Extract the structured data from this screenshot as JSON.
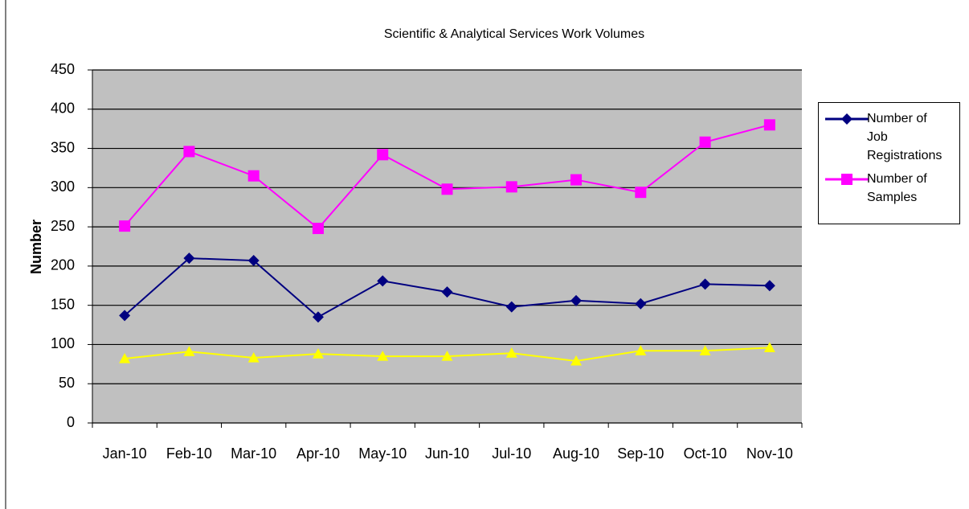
{
  "chart_data": {
    "type": "line",
    "title": "Scientific & Analytical Services Work Volumes",
    "y_label": "Number",
    "categories": [
      "Jan-10",
      "Feb-10",
      "Mar-10",
      "Apr-10",
      "May-10",
      "Jun-10",
      "Jul-10",
      "Aug-10",
      "Sep-10",
      "Oct-10",
      "Nov-10"
    ],
    "series": [
      {
        "name": "Number of Job Registrations",
        "color": "#000080",
        "marker": "diamond",
        "values": [
          137,
          210,
          207,
          135,
          181,
          167,
          148,
          156,
          152,
          177,
          175
        ]
      },
      {
        "name": "Number of Samples",
        "color": "#ff00ff",
        "marker": "square",
        "values": [
          251,
          346,
          315,
          248,
          342,
          298,
          301,
          310,
          294,
          358,
          380
        ]
      },
      {
        "color": "#ffff00",
        "marker": "triangle",
        "values": [
          82,
          91,
          83,
          88,
          85,
          85,
          89,
          79,
          92,
          92,
          96
        ]
      }
    ],
    "ylim": [
      0,
      450
    ],
    "yticks": [
      0,
      50,
      100,
      150,
      200,
      250,
      300,
      350,
      400,
      450
    ],
    "grid": true,
    "legend": "right"
  }
}
